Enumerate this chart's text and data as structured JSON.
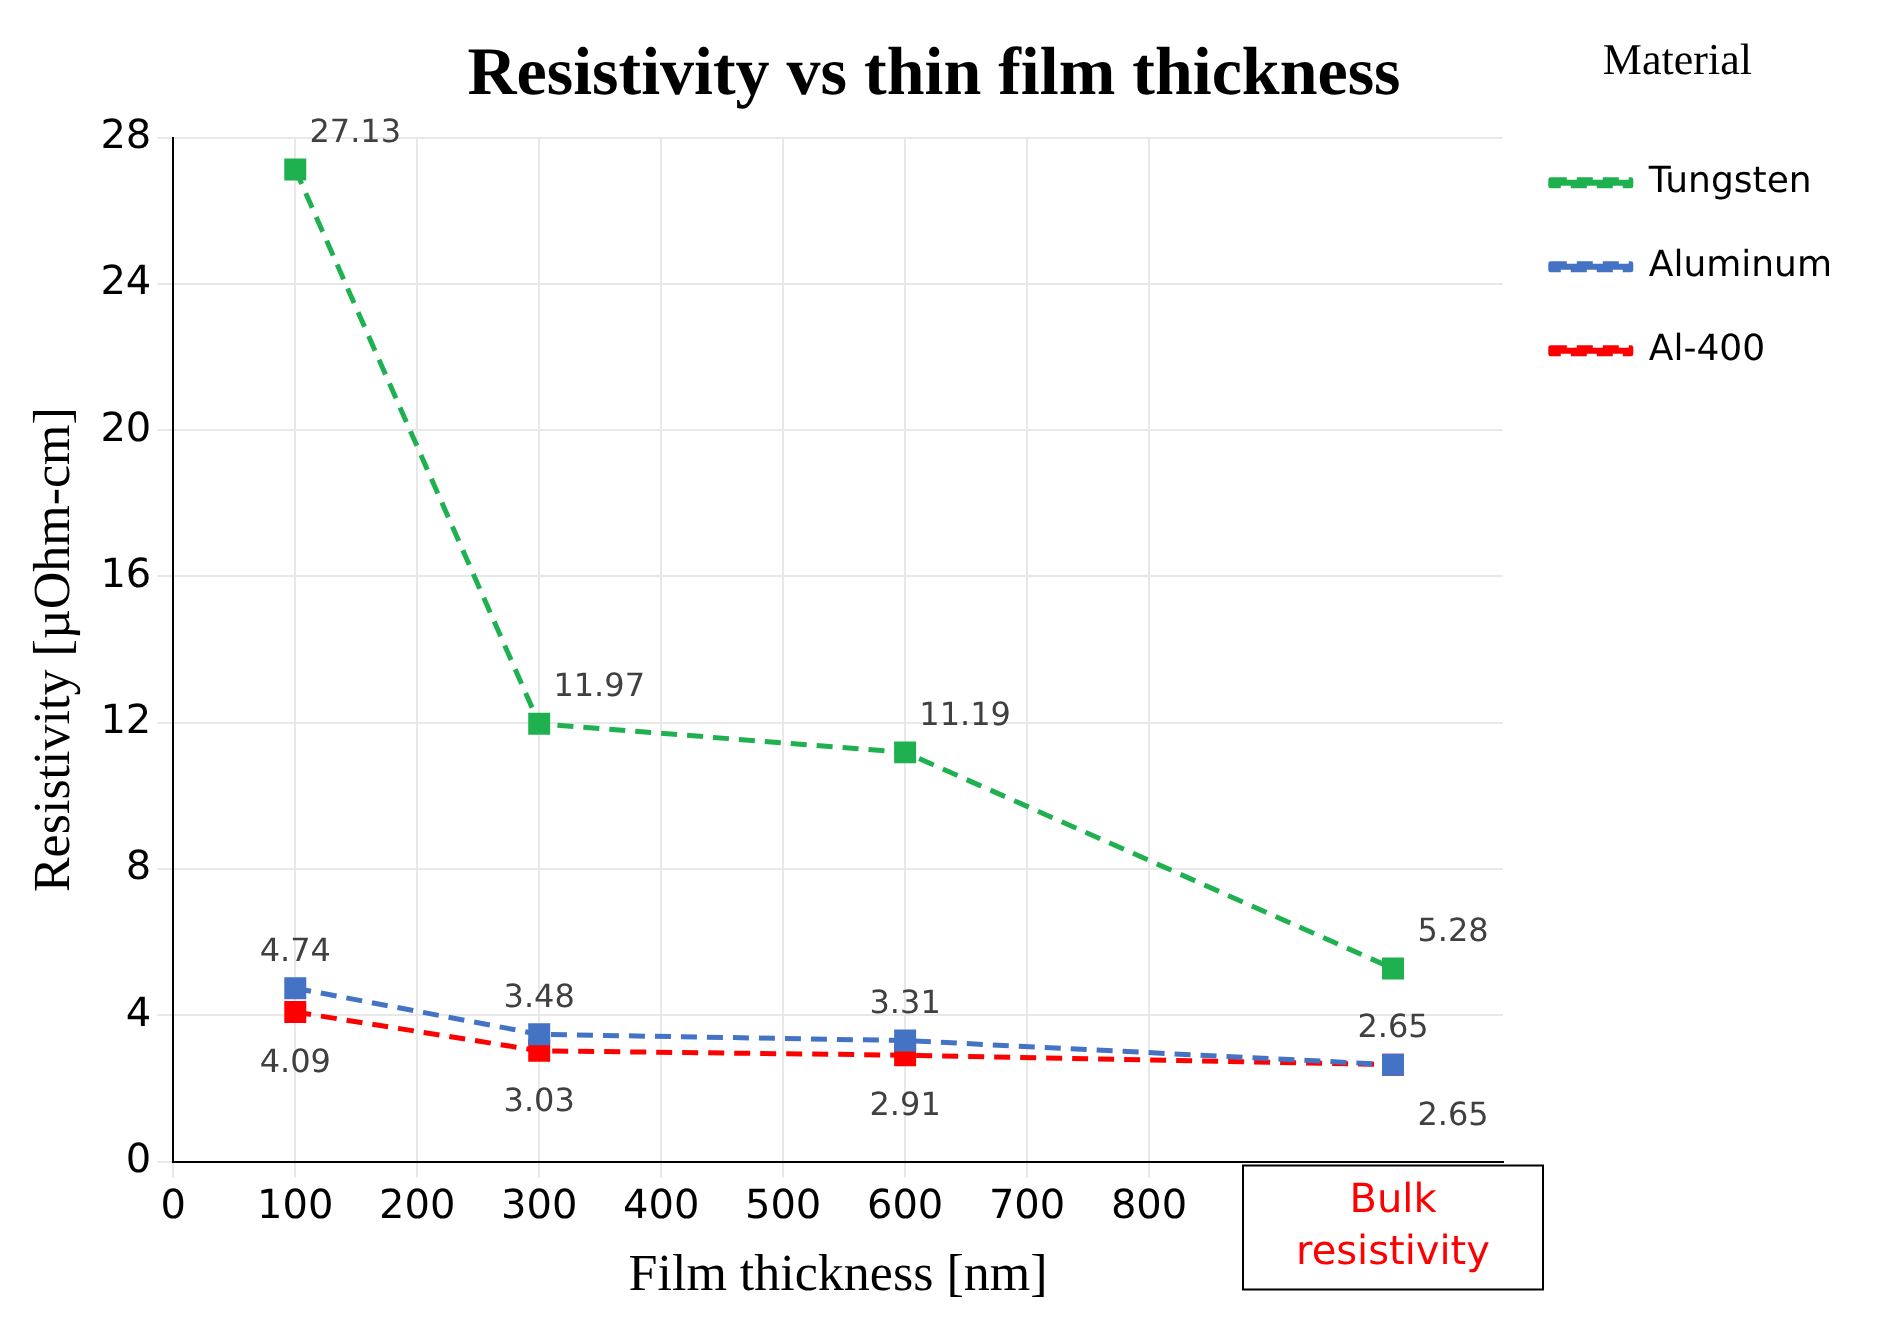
{
  "chart_data": {
    "type": "line",
    "title": "Resistivity vs thin film thickness",
    "xlabel": "Film thickness [nm]",
    "ylabel": "Resistivity [µOhm-cm]",
    "legend_title": "Material",
    "x": [
      100,
      300,
      600,
      1000
    ],
    "series": [
      {
        "name": "Tungsten",
        "color": "#1fb050",
        "values": [
          27.13,
          11.97,
          11.19,
          5.28
        ]
      },
      {
        "name": "Aluminum",
        "color": "#4472c4",
        "values": [
          4.74,
          3.48,
          3.31,
          2.65
        ]
      },
      {
        "name": "Al-400",
        "color": "#ff0000",
        "values": [
          4.09,
          3.03,
          2.91,
          2.65
        ]
      }
    ],
    "xlim": [
      0,
      1090
    ],
    "xticks": [
      0,
      100,
      200,
      300,
      400,
      500,
      600,
      700,
      800
    ],
    "ylim": [
      0,
      28
    ],
    "yticks": [
      0,
      4,
      8,
      12,
      16,
      20,
      24,
      28
    ],
    "grid": true,
    "legend": "top right",
    "marker": "square",
    "line_style": "dashed",
    "data_labels": true,
    "annotations": [
      "Bulk resistivity"
    ]
  }
}
